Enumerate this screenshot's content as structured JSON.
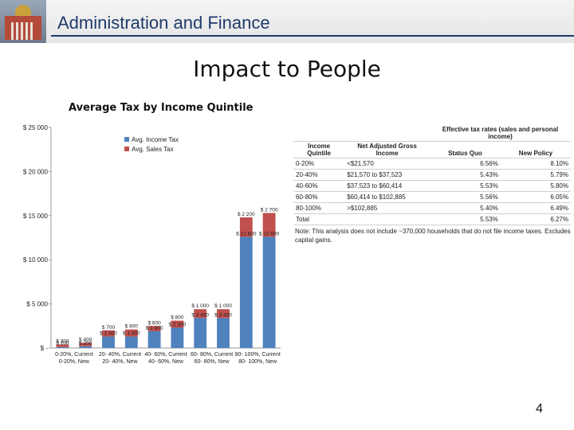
{
  "header": {
    "title": "Administration and Finance"
  },
  "slide": {
    "title": "Impact to People",
    "page_number": "4"
  },
  "colors": {
    "income_tax": "#4f81bd",
    "sales_tax": "#c0504d",
    "header_text": "#1f3a6b"
  },
  "chart_data": {
    "type": "bar",
    "stacked": true,
    "title": "Average Tax by Income Quintile",
    "ylim": [
      0,
      25000
    ],
    "y_ticks": [
      {
        "value": 0,
        "label": "$ -"
      },
      {
        "value": 5000,
        "label": "$ 5 000"
      },
      {
        "value": 10000,
        "label": "$ 10 000"
      },
      {
        "value": 15000,
        "label": "$ 15 000"
      },
      {
        "value": 20000,
        "label": "$ 20 000"
      },
      {
        "value": 25000,
        "label": "$ 25 000"
      }
    ],
    "legend": [
      "Avg. Income Tax",
      "Avg. Sales Tax"
    ],
    "legend_position": "top",
    "groups": [
      {
        "label": [
          "0-20%,",
          "Current"
        ],
        "pair_label": "0-20%, New"
      },
      {
        "label": [
          "20-",
          "40%,",
          "Current"
        ],
        "pair_label": [
          "20-",
          "40%,",
          "New"
        ]
      },
      {
        "label": [
          "40-",
          "60%,",
          "Current"
        ],
        "pair_label": [
          "40-",
          "60%,",
          "New"
        ]
      },
      {
        "label": [
          "60-",
          "80%,",
          "Current"
        ],
        "pair_label": [
          "60-",
          "80%,",
          "New"
        ]
      },
      {
        "label": [
          "80-",
          "100%,",
          "Current"
        ],
        "pair_label": [
          "80-",
          "100%,",
          "New"
        ]
      }
    ],
    "categories": [
      "0-20%, Current",
      "0-20%, New",
      "20-40%, Current",
      "20-40%, New",
      "40-60%, Current",
      "40-60%, New",
      "60-80%, Current",
      "60-80%, New",
      "80-100%, Current",
      "80-100%, New"
    ],
    "series": [
      {
        "name": "Avg. Income Tax",
        "values": [
          100,
          200,
          1300,
          1300,
          1900,
          2300,
          3400,
          3400,
          12600,
          12600
        ],
        "labels": [
          "$ 100",
          "$ 200",
          "$ 1 300",
          "$ 1 300",
          "$ 1 900",
          "$ 2 300",
          "$ 3 400",
          "$ 3 400",
          "$ 12 600",
          "$ 12 600"
        ]
      },
      {
        "name": "Avg. Sales Tax",
        "values": [
          300,
          400,
          700,
          800,
          600,
          800,
          1000,
          1000,
          2200,
          2700
        ],
        "labels": [
          "$ 300",
          "$ 400",
          "$ 700",
          "$ 800",
          "$ 600",
          "$ 800",
          "$ 1 000",
          "$ 1 000",
          "$ 2 200",
          "$ 2 700"
        ]
      }
    ]
  },
  "table": {
    "header_group": "Effective tax rates (sales and personal income)",
    "columns": [
      "Income Quintile",
      "Net Adjusted Gross Income",
      "Status Quo",
      "New Policy"
    ],
    "rows": [
      [
        "0-20%",
        "<$21,570",
        "6.56%",
        "8.10%"
      ],
      [
        "20-40%",
        "$21,570 to $37,523",
        "5.43%",
        "5.79%"
      ],
      [
        "40-60%",
        "$37,523 to $60,414",
        "5.53%",
        "5.80%"
      ],
      [
        "60-80%",
        "$60,414 to $102,885",
        "5.56%",
        "6.05%"
      ],
      [
        "80-100%",
        ">$102,885",
        "5.40%",
        "6.49%"
      ],
      [
        "Total",
        "",
        "5.53%",
        "6.27%"
      ]
    ],
    "note": "Note: This analysis does not include ~370,000 households that do not file income taxes. Excludes capital gains."
  }
}
